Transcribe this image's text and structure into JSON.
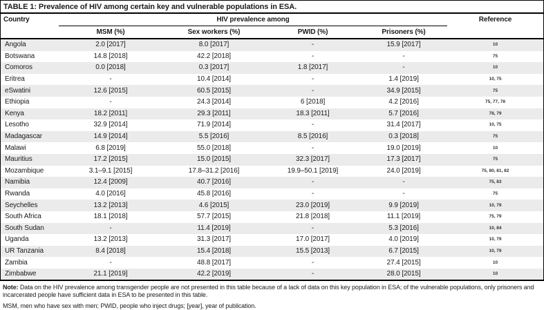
{
  "table": {
    "title": "TABLE 1: Prevalence of HIV among certain key and vulnerable populations in ESA.",
    "header": {
      "country": "Country",
      "group": "HIV prevalence among",
      "sub_columns": [
        "MSM (%)",
        "Sex workers (%)",
        "PWID (%)",
        "Prisoners (%)"
      ],
      "reference": "Reference"
    },
    "rows": [
      {
        "country": "Angola",
        "msm": "2.0 [2017]",
        "sex_workers": "8.0 [2017]",
        "pwid": "-",
        "prisoners": "15.9 [2017]",
        "reference": "10"
      },
      {
        "country": "Botswana",
        "msm": "14.8 [2018]",
        "sex_workers": "42.2 [2018]",
        "pwid": "-",
        "prisoners": "-",
        "reference": "75"
      },
      {
        "country": "Comoros",
        "msm": "0.0 [2018]",
        "sex_workers": "0.3 [2017]",
        "pwid": "1.8 [2017]",
        "prisoners": "-",
        "reference": "10"
      },
      {
        "country": "Eritrea",
        "msm": "-",
        "sex_workers": "10.4 [2014]",
        "pwid": "-",
        "prisoners": "1.4 [2019]",
        "reference": "10, 75"
      },
      {
        "country": "eSwatini",
        "msm": "12.6 [2015]",
        "sex_workers": "60.5 [2015]",
        "pwid": "-",
        "prisoners": "34.9 [2015]",
        "reference": "75"
      },
      {
        "country": "Ethiopia",
        "msm": "-",
        "sex_workers": "24.3 [2014]",
        "pwid": "6 [2018]",
        "prisoners": "4.2 [2016]",
        "reference": "75, 77, 78"
      },
      {
        "country": "Kenya",
        "msm": "18.2 [2011]",
        "sex_workers": "29.3 [2011]",
        "pwid": "18.3 [2011]",
        "prisoners": "5.7 [2016]",
        "reference": "78, 79"
      },
      {
        "country": "Lesotho",
        "msm": "32.9 [2014]",
        "sex_workers": "71.9 [2014]",
        "pwid": "-",
        "prisoners": "31.4 [2017]",
        "reference": "10, 75"
      },
      {
        "country": "Madagascar",
        "msm": "14.9 [2014]",
        "sex_workers": "5.5 [2016]",
        "pwid": "8.5 [2016]",
        "prisoners": "0.3 [2018]",
        "reference": "75"
      },
      {
        "country": "Malawi",
        "msm": "6.8 [2019]",
        "sex_workers": "55.0 [2018]",
        "pwid": "-",
        "prisoners": "19.0 [2019]",
        "reference": "10"
      },
      {
        "country": "Mauritius",
        "msm": "17.2 [2015]",
        "sex_workers": "15.0 [2015]",
        "pwid": "32.3 [2017]",
        "prisoners": "17.3 [2017]",
        "reference": "75"
      },
      {
        "country": "Mozambique",
        "msm": "3.1–9.1 [2015]",
        "sex_workers": "17.8–31.2 [2016]",
        "pwid": "19.9–50.1 [2019]",
        "prisoners": "24.0 [2019]",
        "reference": "75, 80, 81, 82"
      },
      {
        "country": "Namibia",
        "msm": "12.4 [2009]",
        "sex_workers": "40.7 [2016]",
        "pwid": "-",
        "prisoners": "-",
        "reference": "75, 83"
      },
      {
        "country": "Rwanda",
        "msm": "4.0 [2016]",
        "sex_workers": "45.8 [2016]",
        "pwid": "-",
        "prisoners": "-",
        "reference": "75"
      },
      {
        "country": "Seychelles",
        "msm": "13.2 [2013]",
        "sex_workers": "4.6 [2015]",
        "pwid": "23.0 [2019]",
        "prisoners": "9.9 [2019]",
        "reference": "10, 79"
      },
      {
        "country": "South Africa",
        "msm": "18.1 [2018]",
        "sex_workers": "57.7 [2015]",
        "pwid": "21.8 [2018]",
        "prisoners": "11.1 [2019]",
        "reference": "75, 79"
      },
      {
        "country": "South Sudan",
        "msm": "-",
        "sex_workers": "11.4 [2019]",
        "pwid": "-",
        "prisoners": "5.3 [2016]",
        "reference": "10, 84"
      },
      {
        "country": "Uganda",
        "msm": "13.2 [2013]",
        "sex_workers": "31.3 [2017]",
        "pwid": "17.0 [2017]",
        "prisoners": "4.0 [2019]",
        "reference": "10, 79"
      },
      {
        "country": "UR Tanzania",
        "msm": "8.4 [2018]",
        "sex_workers": "15.4 [2018]",
        "pwid": "15.5 [2013]",
        "prisoners": "6.7 [2015]",
        "reference": "10, 79"
      },
      {
        "country": "Zambia",
        "msm": "-",
        "sex_workers": "48.8 [2017]",
        "pwid": "-",
        "prisoners": "27.4 [2015]",
        "reference": "10"
      },
      {
        "country": "Zimbabwe",
        "msm": "21.1 [2019]",
        "sex_workers": "42.2 [2019]",
        "pwid": "-",
        "prisoners": "28.0 [2015]",
        "reference": "10"
      }
    ],
    "notes": {
      "note_label": "Note:",
      "note_text": " Data on the HIV prevalence among transgender people are not presented in this table because of a lack of data on this key population in ESA; of the vulnerable populations, only prisoners and incarcerated people have sufficient data in ESA to be presented in this table.",
      "abbreviations": "MSM, men who have sex with men; PWID, people who inject drugs; [year], year of publication."
    }
  }
}
